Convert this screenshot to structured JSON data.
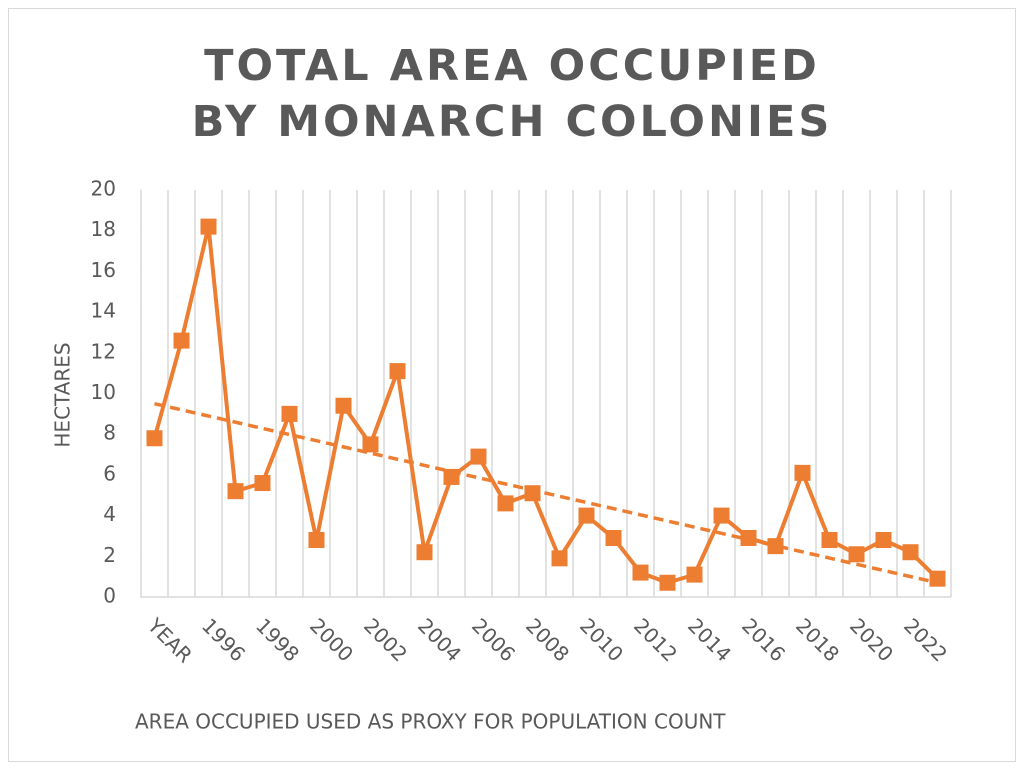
{
  "chart_data": {
    "type": "line",
    "title": "TOTAL AREA OCCUPIED BY MONARCH COLONIES",
    "x_label": "AREA OCCUPIED USED AS PROXY FOR POPULATION COUNT",
    "y_label": "HECTARES",
    "categories": [
      "YEAR",
      null,
      "1996",
      null,
      "1998",
      null,
      "2000",
      null,
      "2002",
      null,
      "2004",
      null,
      "2006",
      null,
      "2008",
      null,
      "2010",
      null,
      "2012",
      null,
      "2014",
      null,
      "2016",
      null,
      "2018",
      null,
      "2020",
      null,
      "2022",
      null
    ],
    "series": [
      {
        "color": "#ED7D31",
        "values": [
          7.8,
          12.6,
          18.2,
          5.2,
          5.6,
          9.0,
          2.8,
          9.4,
          7.5,
          11.1,
          2.2,
          5.9,
          6.9,
          4.6,
          5.1,
          1.9,
          4.0,
          2.9,
          1.2,
          0.7,
          1.1,
          4.0,
          2.9,
          2.5,
          6.1,
          2.8,
          2.1,
          2.8,
          2.2,
          0.9
        ]
      }
    ],
    "trendline": {
      "color": "#ED7D31",
      "values": [
        9.5,
        0.7
      ]
    },
    "ylim": [
      0,
      20
    ],
    "yticks": [
      0,
      2,
      4,
      6,
      8,
      10,
      12,
      14,
      16,
      18,
      20
    ],
    "grid": "vertical"
  }
}
